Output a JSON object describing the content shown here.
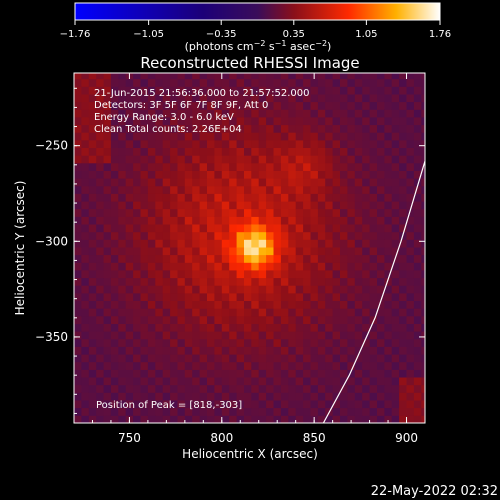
{
  "colorbar": {
    "ticks": [
      "−1.76",
      "−1.05",
      "−0.35",
      "0.35",
      "1.05",
      "1.76"
    ],
    "units_html": "(photons cm<tspan baseline-shift=\"super\" font-size=\"8\">−2</tspan> s<tspan baseline-shift=\"super\" font-size=\"8\">−1</tspan> asec<tspan baseline-shift=\"super\" font-size=\"8\">−2</tspan>)"
  },
  "chart_data": {
    "type": "heatmap",
    "title": "Reconstructed RHESSI Image",
    "xlabel": "Heliocentric X (arcsec)",
    "ylabel": "Heliocentric Y (arcsec)",
    "xlim": [
      720,
      910
    ],
    "ylim": [
      -395,
      -212
    ],
    "x_ticks": [
      750,
      800,
      850,
      900
    ],
    "y_ticks": [
      -250,
      -300,
      -350
    ],
    "y_tick_labels": [
      "−250",
      "−300",
      "−350"
    ],
    "colorbar_range": [
      -1.76,
      1.76
    ],
    "colorbar_ticks": [
      -1.76,
      -1.05,
      -0.35,
      0.35,
      1.05,
      1.76
    ],
    "source": {
      "x": 818,
      "y": -303,
      "peak": 1.76
    },
    "limb_curve": [
      [
        910,
        -258
      ],
      [
        897,
        -300
      ],
      [
        883,
        -340
      ],
      [
        869,
        -370
      ],
      [
        855,
        -395
      ]
    ],
    "info_lines": [
      "21-Jun-2015 21:56:36.000 to 21:57:52.000",
      "Detectors: 3F 5F 6F 7F 8F 9F, Att 0",
      "Energy Range: 3.0 - 6.0 keV",
      "Clean    Total counts: 2.26E+04"
    ],
    "peak_label": "Position of Peak = [818,-303]"
  },
  "timestamp": "22-May-2022 02:32"
}
